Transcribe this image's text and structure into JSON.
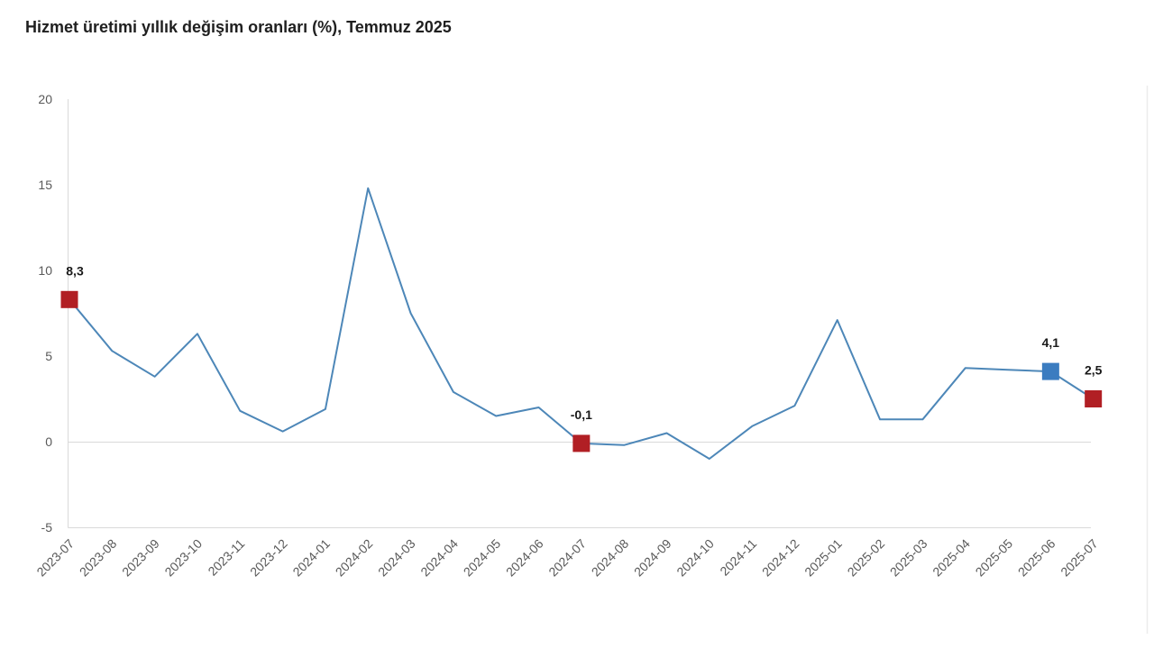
{
  "chart_data": {
    "type": "line",
    "title": "Hizmet üretimi yıllık değişim oranları (%), Temmuz 2025",
    "xlabel": "",
    "ylabel": "",
    "ylim": [
      -5,
      20
    ],
    "y_ticks": [
      20,
      15,
      10,
      5,
      0,
      -5
    ],
    "grid": "zero-line-and-bottom-only",
    "legend_position": "none",
    "categories": [
      "2023-07",
      "2023-08",
      "2023-09",
      "2023-10",
      "2023-11",
      "2023-12",
      "2024-01",
      "2024-02",
      "2024-03",
      "2024-04",
      "2024-05",
      "2024-06",
      "2024-07",
      "2024-08",
      "2024-09",
      "2024-10",
      "2024-11",
      "2024-12",
      "2025-01",
      "2025-02",
      "2025-03",
      "2025-04",
      "2025-05",
      "2025-06",
      "2025-07"
    ],
    "series": [
      {
        "name": "Hizmet üretimi yıllık değişim oranı (%)",
        "values": [
          8.3,
          5.3,
          3.8,
          6.3,
          1.8,
          0.6,
          1.9,
          14.8,
          7.5,
          2.9,
          1.5,
          2.0,
          -0.1,
          -0.2,
          0.5,
          -1.0,
          0.9,
          2.1,
          7.1,
          1.3,
          1.3,
          4.3,
          4.2,
          4.1,
          2.5
        ]
      }
    ],
    "annotations": [
      {
        "index": 0,
        "category": "2023-07",
        "value": 8.3,
        "label": "8,3",
        "marker": "square",
        "marker_color": "#b11f24",
        "dx": 6
      },
      {
        "index": 12,
        "category": "2024-07",
        "value": -0.1,
        "label": "-0,1",
        "marker": "square",
        "marker_color": "#b11f24",
        "dx": 0
      },
      {
        "index": 23,
        "category": "2025-06",
        "value": 4.1,
        "label": "4,1",
        "marker": "square",
        "marker_color": "#3b7cc0",
        "dx": 0
      },
      {
        "index": 24,
        "category": "2025-07",
        "value": 2.5,
        "label": "2,5",
        "marker": "square",
        "marker_color": "#b11f24",
        "dx": 0
      }
    ],
    "colors": {
      "line": "#4d87b8",
      "grid": "#d9d9d9",
      "axis_text": "#595959",
      "value_label": "#1a1a1a",
      "right_border": "#ececec",
      "background": "#ffffff"
    }
  }
}
